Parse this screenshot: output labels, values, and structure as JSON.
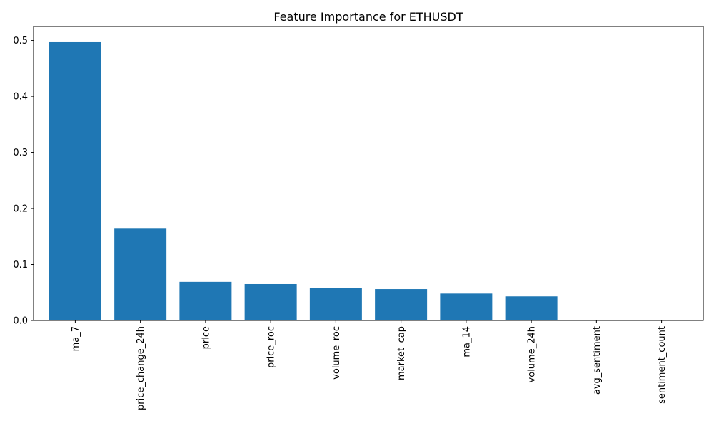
{
  "chart_data": {
    "type": "bar",
    "title": "Feature Importance for ETHUSDT",
    "xlabel": "",
    "ylabel": "",
    "categories": [
      "ma_7",
      "price_change_24h",
      "price",
      "price_roc",
      "volume_roc",
      "market_cap",
      "ma_14",
      "volume_24h",
      "avg_sentiment",
      "sentiment_count"
    ],
    "values": [
      0.497,
      0.164,
      0.069,
      0.065,
      0.058,
      0.056,
      0.048,
      0.043,
      0.0,
      0.0
    ],
    "ylim": [
      0,
      0.525
    ],
    "yticks": [
      0.0,
      0.1,
      0.2,
      0.3,
      0.4,
      0.5
    ],
    "ytick_labels": [
      "0.0",
      "0.1",
      "0.2",
      "0.3",
      "0.4",
      "0.5"
    ],
    "bar_color": "#1f77b4",
    "grid": false,
    "legend": "none"
  }
}
